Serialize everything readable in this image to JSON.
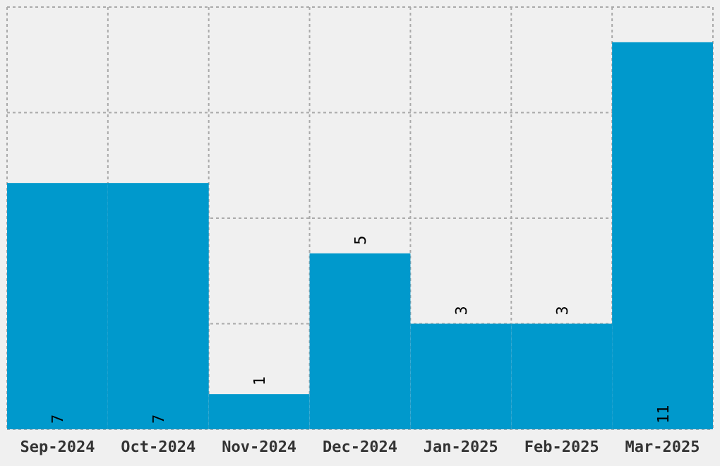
{
  "chart_data": {
    "type": "bar",
    "categories": [
      "Sep-2024",
      "Oct-2024",
      "Nov-2024",
      "Dec-2024",
      "Jan-2025",
      "Feb-2025",
      "Mar-2025"
    ],
    "values": [
      7,
      7,
      1,
      5,
      3,
      3,
      11
    ],
    "color": "#0099cc",
    "ylim": [
      0,
      12
    ],
    "yticks": [
      {
        "value": 0,
        "label": null
      },
      {
        "value": 3,
        "label": null
      },
      {
        "value": 6,
        "label": null
      },
      {
        "value": 9,
        "label": null
      },
      {
        "value": 12,
        "label": null
      }
    ],
    "grid": true,
    "tick_labels": "x",
    "data_labels": true
  }
}
